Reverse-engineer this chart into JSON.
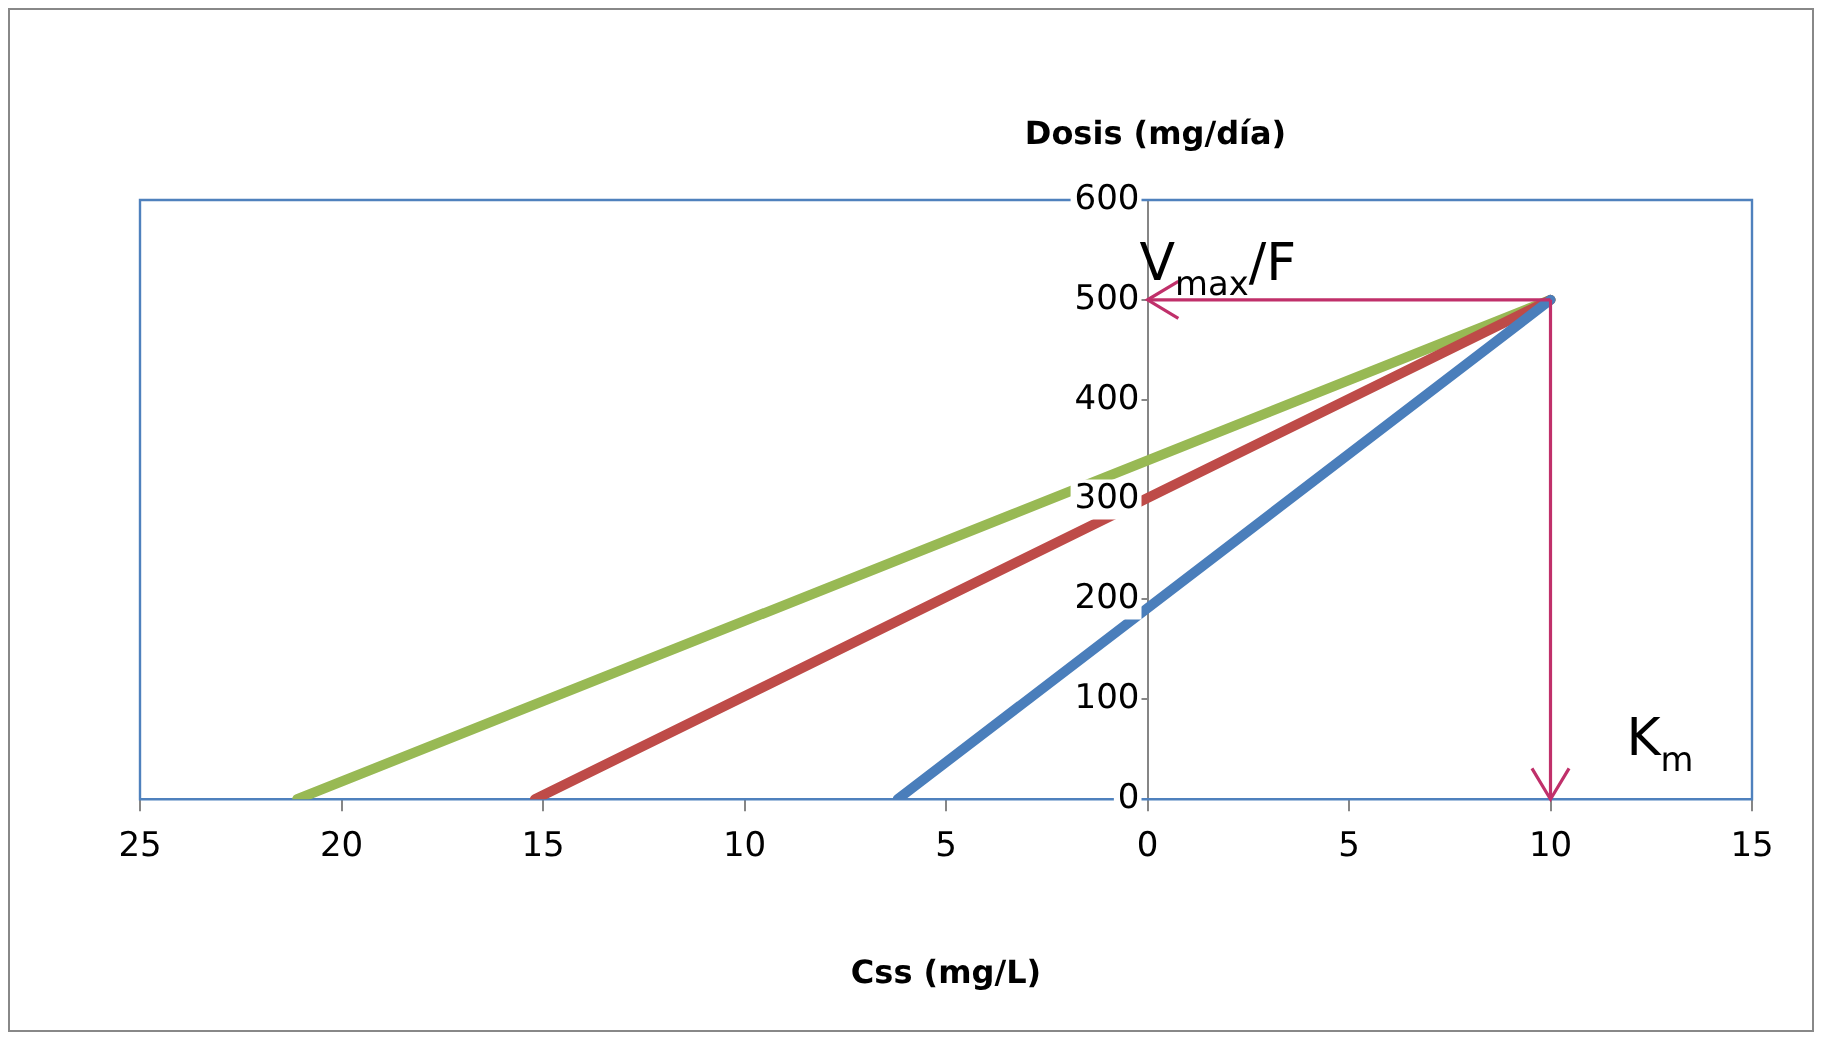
{
  "chart_data": {
    "type": "line",
    "xlabel": "Css (mg/L)",
    "ylabel": "Dosis (mg/día)",
    "series": [
      {
        "color": "#4a7ebb",
        "x": [
          -6.2,
          10
        ],
        "values": [
          0,
          500
        ]
      },
      {
        "color": "#be4b48",
        "x": [
          -15.2,
          10
        ],
        "values": [
          0,
          500
        ]
      },
      {
        "color": "#98b954",
        "x": [
          -21.1,
          10
        ],
        "values": [
          0,
          500
        ]
      }
    ],
    "xlim": [
      -25,
      15
    ],
    "xticks": [
      {
        "value": -25,
        "label": "25"
      },
      {
        "value": -20,
        "label": "20"
      },
      {
        "value": -15,
        "label": "15"
      },
      {
        "value": -10,
        "label": "10"
      },
      {
        "value": -5,
        "label": "5"
      },
      0,
      5,
      10,
      15
    ],
    "ylim": [
      0,
      600
    ],
    "yticks": [
      0,
      100,
      200,
      300,
      400,
      500,
      600
    ],
    "ref_lines": [
      {
        "axis": "y",
        "value": 500,
        "label": "V$_{max}$/F",
        "color": "#c0306a"
      },
      {
        "axis": "x",
        "value": 10,
        "label": "K$_{m}$",
        "color": "#c0306a"
      }
    ],
    "grid": false,
    "legend": false,
    "marker": "none",
    "line_style": "solid"
  }
}
